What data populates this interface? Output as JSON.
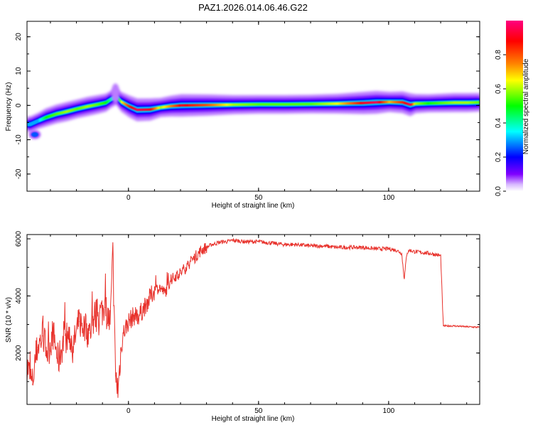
{
  "title": "PAZ1.2026.014.06.46.G22",
  "chart_data": [
    {
      "type": "heatmap",
      "title": "PAZ1.2026.014.06.46.G22",
      "xlabel": "Height of straight line (km)",
      "ylabel": "Frequency (Hz)",
      "xlim": [
        -39,
        135
      ],
      "ylim": [
        -25,
        24.5
      ],
      "x_ticks": [
        0,
        50,
        100
      ],
      "x_tick_labels": [
        "0",
        "50",
        "100"
      ],
      "y_ticks": [
        -20,
        -10,
        0,
        10,
        20
      ],
      "y_tick_labels": [
        "-20",
        "-10",
        "0",
        "10",
        "20"
      ],
      "colorbar": {
        "label": "Normalized spectral amplitude",
        "range": [
          0,
          1
        ],
        "ticks": [
          0.0,
          0.2,
          0.4,
          0.6,
          0.8
        ],
        "tick_labels": [
          "0.0",
          "0.2",
          "0.4",
          "0.6",
          "0.8"
        ],
        "colors": [
          "#ffffff",
          "#8000ff",
          "#0000ff",
          "#00ffff",
          "#00ff00",
          "#ffff00",
          "#ff8000",
          "#ff0000",
          "#ff0080"
        ]
      },
      "ridge_x": [
        -38,
        -35,
        -32,
        -28,
        -24,
        -20,
        -16,
        -12,
        -9,
        -7,
        -5,
        -3,
        0,
        3,
        8,
        12,
        16,
        20,
        30,
        40,
        50,
        60,
        70,
        80,
        90,
        95,
        100,
        105,
        108,
        110,
        115,
        120,
        125,
        130,
        135
      ],
      "ridge_freq": [
        -5.5,
        -4.5,
        -3.5,
        -2.5,
        -1.8,
        -1.0,
        -0.3,
        0.3,
        0.8,
        1.8,
        2.5,
        1.0,
        -0.3,
        -1.3,
        -1.2,
        -0.6,
        -0.2,
        0.0,
        0.1,
        0.2,
        0.3,
        0.3,
        0.4,
        0.5,
        0.7,
        0.9,
        1.0,
        0.9,
        0.2,
        0.5,
        0.6,
        0.7,
        0.8,
        0.8,
        0.9
      ],
      "ridge_amplitude": [
        0.3,
        0.3,
        0.5,
        0.55,
        0.6,
        0.55,
        0.6,
        0.55,
        0.5,
        0.4,
        0.3,
        0.65,
        0.85,
        0.95,
        0.9,
        0.6,
        0.75,
        0.9,
        0.8,
        0.6,
        0.55,
        0.55,
        0.55,
        0.65,
        0.9,
        0.95,
        0.7,
        0.85,
        0.95,
        0.6,
        0.5,
        0.55,
        0.6,
        0.6,
        0.55
      ],
      "secondary_blob": {
        "x": -36,
        "freq": -8.5,
        "amplitude": 0.25
      }
    },
    {
      "type": "line",
      "xlabel": "Height of straight line (km)",
      "ylabel": "SNR (10 * v/v)",
      "xlim": [
        -39,
        135
      ],
      "ylim": [
        200,
        6150
      ],
      "x_ticks": [
        0,
        50,
        100
      ],
      "x_tick_labels": [
        "0",
        "50",
        "100"
      ],
      "y_ticks": [
        2000,
        4000,
        6000
      ],
      "y_tick_labels": [
        "2000",
        "4000",
        "6000"
      ],
      "color": "#e8322c",
      "x": [
        -39,
        -37,
        -35,
        -33,
        -31,
        -29,
        -27,
        -25,
        -23,
        -21,
        -19,
        -17,
        -15,
        -13,
        -11,
        -9,
        -7,
        -6,
        -5,
        -4,
        -3,
        -2,
        -1,
        0,
        2,
        4,
        6,
        8,
        10,
        12,
        14,
        16,
        18,
        20,
        22,
        24,
        26,
        28,
        30,
        32,
        34,
        36,
        38,
        40,
        45,
        50,
        55,
        60,
        65,
        70,
        75,
        80,
        85,
        90,
        95,
        100,
        103,
        105,
        106,
        107,
        108,
        110,
        115,
        118,
        120,
        121,
        122,
        125,
        130,
        135
      ],
      "values": [
        1600,
        900,
        2200,
        2600,
        2000,
        2700,
        1700,
        2400,
        2600,
        2300,
        3100,
        2900,
        2700,
        3300,
        3400,
        3600,
        3000,
        5500,
        1200,
        700,
        2000,
        2700,
        2900,
        3100,
        3300,
        3300,
        3600,
        3900,
        4200,
        4300,
        4100,
        4500,
        4700,
        4800,
        5000,
        5200,
        5400,
        5600,
        5700,
        5800,
        5850,
        5900,
        5900,
        5950,
        5900,
        5900,
        5850,
        5800,
        5800,
        5750,
        5750,
        5700,
        5700,
        5700,
        5650,
        5650,
        5600,
        5500,
        4600,
        5500,
        5600,
        5550,
        5500,
        5450,
        5400,
        2950,
        2950,
        2950,
        2920,
        2900
      ]
    }
  ]
}
